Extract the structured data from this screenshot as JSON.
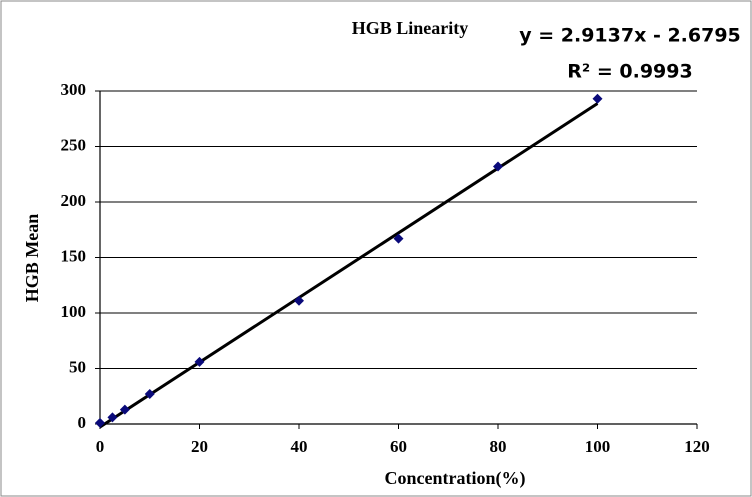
{
  "chart_data": {
    "type": "scatter",
    "title": "HGB Linearity",
    "x_label": "Concentration(%)",
    "y_label": "HGB Mean",
    "x": [
      0,
      2.5,
      5,
      10,
      20,
      40,
      60,
      80,
      100
    ],
    "series": [
      {
        "color": "#0a0a7a",
        "values": [
          1,
          6,
          13,
          27,
          56,
          111,
          167,
          232,
          293
        ]
      }
    ],
    "trendline": {
      "slope": 2.9137,
      "intercept": -2.6795,
      "color": "#000000",
      "label": "y = 2.9137x - 2.6795",
      "r2_label": "R² = 0.9993"
    },
    "xlim": [
      0,
      120
    ],
    "xticks": [
      0,
      20,
      40,
      60,
      80,
      100,
      120
    ],
    "ylim": [
      0,
      300
    ],
    "yticks": [
      0,
      50,
      100,
      150,
      200,
      250,
      300
    ],
    "grid": true
  }
}
